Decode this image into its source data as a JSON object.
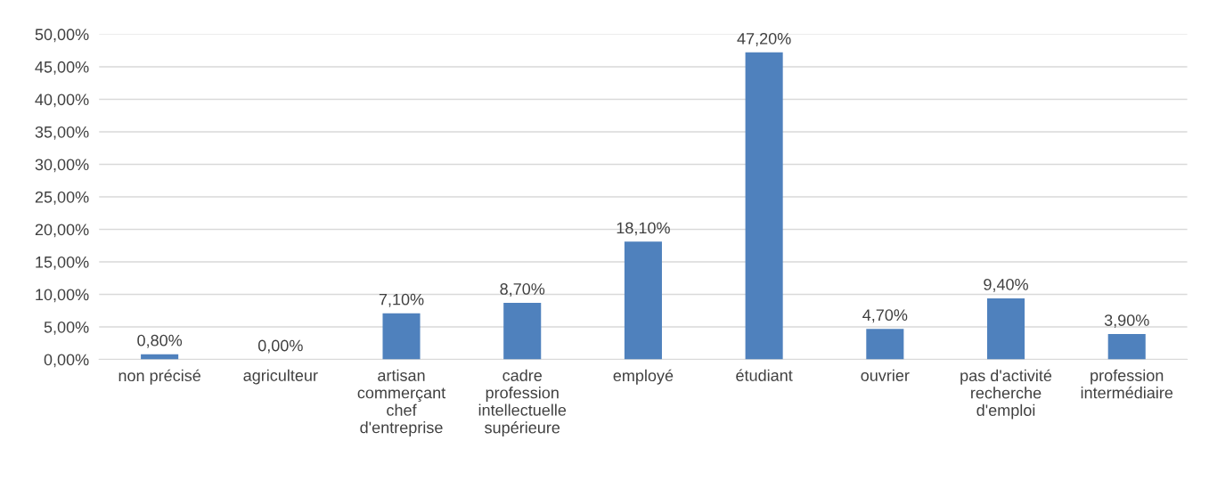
{
  "chart_data": {
    "type": "bar",
    "categories": [
      "non précisé",
      "agriculteur",
      "artisan\ncommerçant\nchef\nd'entreprise",
      "cadre\nprofession\nintellectuelle\nsupérieure",
      "employé",
      "étudiant",
      "ouvrier",
      "pas d'activité\nrecherche\nd'emploi",
      "profession\nintermédiaire"
    ],
    "values": [
      0.8,
      0.0,
      7.1,
      8.7,
      18.1,
      47.2,
      4.7,
      9.4,
      3.9
    ],
    "value_labels": [
      "0,80%",
      "0,00%",
      "7,10%",
      "8,70%",
      "18,10%",
      "47,20%",
      "4,70%",
      "9,40%",
      "3,90%"
    ],
    "color": "#4f81bd",
    "ylim": [
      0,
      50
    ],
    "yticks": [
      {
        "value": 0,
        "label": "0,00%"
      },
      {
        "value": 5,
        "label": "5,00%"
      },
      {
        "value": 10,
        "label": "10,00%"
      },
      {
        "value": 15,
        "label": "15,00%"
      },
      {
        "value": 20,
        "label": "20,00%"
      },
      {
        "value": 25,
        "label": "25,00%"
      },
      {
        "value": 30,
        "label": "30,00%"
      },
      {
        "value": 35,
        "label": "35,00%"
      },
      {
        "value": 40,
        "label": "40,00%"
      },
      {
        "value": 45,
        "label": "45,00%"
      },
      {
        "value": 50,
        "label": "50,00%"
      }
    ],
    "grid": "y"
  }
}
